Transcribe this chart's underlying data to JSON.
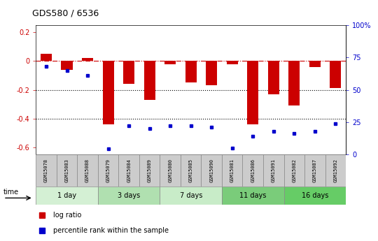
{
  "title": "GDS580 / 6536",
  "samples": [
    "GSM15078",
    "GSM15083",
    "GSM15088",
    "GSM15079",
    "GSM15084",
    "GSM15089",
    "GSM15080",
    "GSM15085",
    "GSM15090",
    "GSM15081",
    "GSM15086",
    "GSM15091",
    "GSM15082",
    "GSM15087",
    "GSM15092"
  ],
  "log_ratio": [
    0.05,
    -0.06,
    0.02,
    -0.44,
    -0.16,
    -0.27,
    -0.02,
    -0.15,
    -0.17,
    -0.02,
    -0.44,
    -0.23,
    -0.31,
    -0.04,
    -0.19
  ],
  "percentile_rank": [
    68,
    65,
    61,
    4,
    22,
    20,
    22,
    22,
    21,
    5,
    14,
    18,
    16,
    18,
    24
  ],
  "groups": [
    {
      "label": "1 day",
      "start": 0,
      "end": 3,
      "color": "#d4f0d4"
    },
    {
      "label": "3 days",
      "start": 3,
      "end": 6,
      "color": "#b0e0b0"
    },
    {
      "label": "7 days",
      "start": 6,
      "end": 9,
      "color": "#c8ecc8"
    },
    {
      "label": "11 days",
      "start": 9,
      "end": 12,
      "color": "#7acc7a"
    },
    {
      "label": "16 days",
      "start": 12,
      "end": 15,
      "color": "#66cc66"
    }
  ],
  "ylim_left": [
    -0.65,
    0.25
  ],
  "ylim_right": [
    0,
    100
  ],
  "bar_color": "#cc0000",
  "point_color": "#0000cc",
  "right_ticks": [
    0,
    25,
    50,
    75,
    100
  ],
  "right_tick_labels": [
    "0",
    "25",
    "50",
    "75",
    "100%"
  ],
  "xlabel_time": "time",
  "legend_bar": "log ratio",
  "legend_point": "percentile rank within the sample",
  "background_color": "#ffffff",
  "sample_row_color": "#cccccc",
  "left_ticks": [
    -0.6,
    -0.4,
    -0.2,
    0.0,
    0.2
  ],
  "left_tick_labels": [
    "-0.6",
    "-0.4",
    "-0.2",
    "0",
    "0.2"
  ]
}
